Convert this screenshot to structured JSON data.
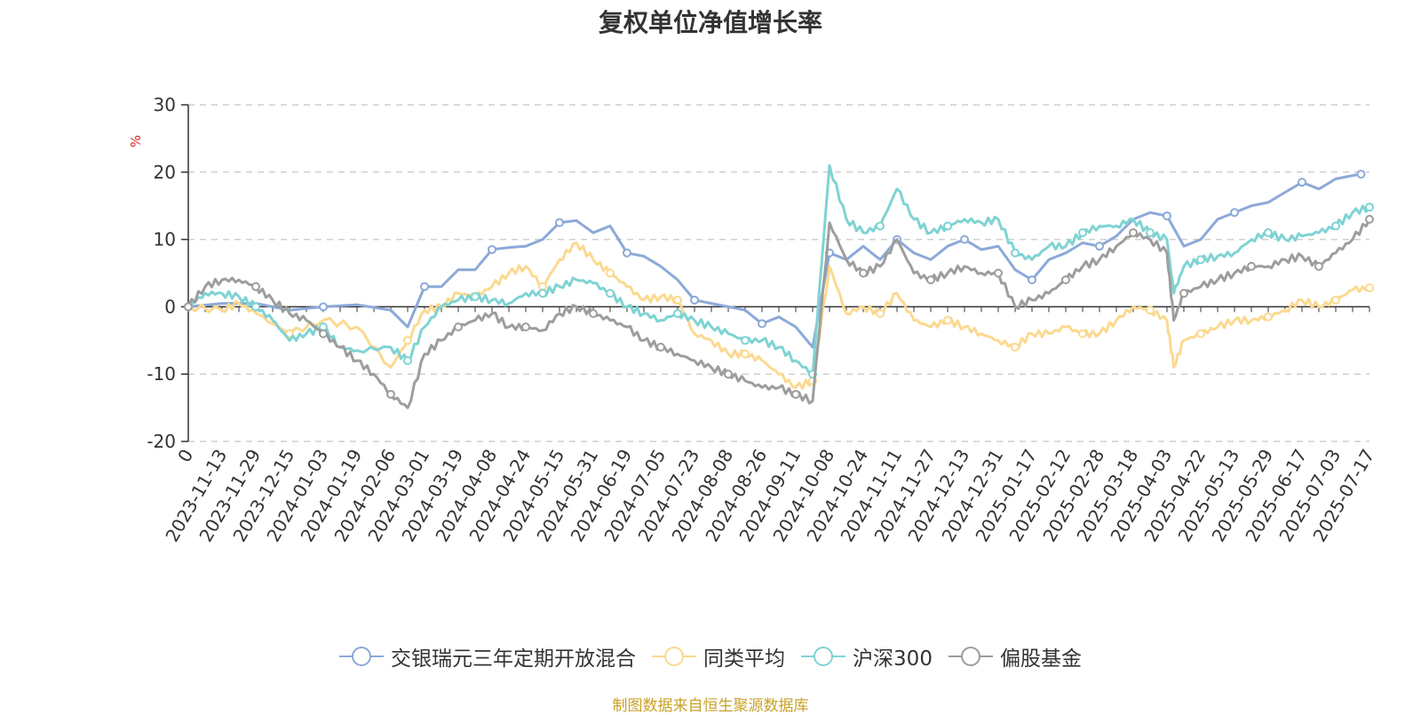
{
  "chart_data": {
    "type": "line",
    "title": "复权单位净值增长率",
    "ylabel": "%",
    "ylim": [
      -20,
      30
    ],
    "yticks": [
      -20,
      -10,
      0,
      10,
      20,
      30
    ],
    "x_ticks": [
      "0",
      "2023-11-13",
      "2023-11-29",
      "2023-12-15",
      "2024-01-03",
      "2024-01-19",
      "2024-02-06",
      "2024-03-01",
      "2024-03-19",
      "2024-04-08",
      "2024-04-24",
      "2024-05-15",
      "2024-05-31",
      "2024-06-19",
      "2024-07-05",
      "2024-07-23",
      "2024-08-08",
      "2024-08-26",
      "2024-09-11",
      "2024-10-08",
      "2024-10-24",
      "2024-11-11",
      "2024-11-27",
      "2024-12-13",
      "2024-12-31",
      "2025-01-17",
      "2025-02-12",
      "2025-02-28",
      "2025-03-18",
      "2025-04-03",
      "2025-04-22",
      "2025-05-13",
      "2025-05-29",
      "2025-06-17",
      "2025-07-03",
      "2025-07-17"
    ],
    "grid": "dashed horizontal",
    "legend_position": "bottom",
    "series": [
      {
        "name": "交银瑞元三年定期开放混合",
        "color": "#8ca9d8",
        "smooth": false,
        "points": [
          [
            0,
            0
          ],
          [
            1,
            0.5
          ],
          [
            2,
            0.5
          ],
          [
            3,
            -0.5
          ],
          [
            4,
            0
          ],
          [
            5,
            0.3
          ],
          [
            6,
            -0.5
          ],
          [
            6.5,
            -3
          ],
          [
            7,
            3
          ],
          [
            7.5,
            3
          ],
          [
            8,
            5.5
          ],
          [
            8.5,
            5.5
          ],
          [
            9,
            8.5
          ],
          [
            9.5,
            8.8
          ],
          [
            10,
            9
          ],
          [
            10.5,
            10
          ],
          [
            11,
            12.5
          ],
          [
            11.5,
            12.8
          ],
          [
            12,
            11
          ],
          [
            12.5,
            12
          ],
          [
            13,
            8
          ],
          [
            13.5,
            7.5
          ],
          [
            14,
            6
          ],
          [
            14.5,
            4
          ],
          [
            15,
            1
          ],
          [
            15.5,
            0.5
          ],
          [
            16,
            0
          ],
          [
            16.5,
            -0.5
          ],
          [
            17,
            -2.5
          ],
          [
            17.5,
            -1.5
          ],
          [
            18,
            -3
          ],
          [
            18.5,
            -6
          ],
          [
            19,
            8
          ],
          [
            19.5,
            7
          ],
          [
            20,
            9
          ],
          [
            20.5,
            7
          ],
          [
            21,
            10
          ],
          [
            21.5,
            8
          ],
          [
            22,
            7
          ],
          [
            22.5,
            9
          ],
          [
            23,
            10
          ],
          [
            23.5,
            8.5
          ],
          [
            24,
            9
          ],
          [
            24.5,
            5.5
          ],
          [
            25,
            4
          ],
          [
            25.5,
            7
          ],
          [
            26,
            8
          ],
          [
            26.5,
            9.5
          ],
          [
            27,
            9
          ],
          [
            27.5,
            10.5
          ],
          [
            28,
            13
          ],
          [
            28.5,
            14
          ],
          [
            29,
            13.5
          ],
          [
            29.5,
            9
          ],
          [
            30,
            10
          ],
          [
            30.5,
            13
          ],
          [
            31,
            14
          ],
          [
            31.5,
            15
          ],
          [
            32,
            15.5
          ],
          [
            32.5,
            17
          ],
          [
            33,
            18.5
          ],
          [
            33.5,
            17.5
          ],
          [
            34,
            19
          ],
          [
            34.5,
            19.5
          ],
          [
            34.75,
            19.7
          ]
        ]
      },
      {
        "name": "同类平均",
        "color": "#fbd98f",
        "smooth": true,
        "points": [
          [
            0,
            0
          ],
          [
            1,
            -0.5
          ],
          [
            1.5,
            0.5
          ],
          [
            2,
            -1
          ],
          [
            3,
            -4
          ],
          [
            4,
            -2
          ],
          [
            5,
            -3
          ],
          [
            6,
            -9
          ],
          [
            6.5,
            -5
          ],
          [
            7,
            -0.5
          ],
          [
            7.5,
            0
          ],
          [
            8,
            2
          ],
          [
            8.5,
            1.5
          ],
          [
            9,
            3
          ],
          [
            9.5,
            5
          ],
          [
            10,
            6
          ],
          [
            10.5,
            3
          ],
          [
            11,
            7
          ],
          [
            11.5,
            9.5
          ],
          [
            12,
            7
          ],
          [
            12.5,
            5
          ],
          [
            13,
            3
          ],
          [
            13.5,
            1
          ],
          [
            14,
            1.5
          ],
          [
            14.5,
            1
          ],
          [
            15,
            -4
          ],
          [
            15.5,
            -5
          ],
          [
            16,
            -7
          ],
          [
            16.5,
            -7
          ],
          [
            17,
            -8
          ],
          [
            17.5,
            -10
          ],
          [
            18,
            -12
          ],
          [
            18.5,
            -11
          ],
          [
            19,
            6
          ],
          [
            19.5,
            -1
          ],
          [
            20,
            0
          ],
          [
            20.5,
            -1
          ],
          [
            21,
            2
          ],
          [
            21.5,
            -2
          ],
          [
            22,
            -3
          ],
          [
            22.5,
            -2
          ],
          [
            23,
            -3
          ],
          [
            23.5,
            -4
          ],
          [
            24,
            -5
          ],
          [
            24.5,
            -6
          ],
          [
            25,
            -4
          ],
          [
            25.5,
            -4
          ],
          [
            26,
            -3
          ],
          [
            26.5,
            -4
          ],
          [
            27,
            -4
          ],
          [
            27.5,
            -2
          ],
          [
            28,
            0
          ],
          [
            28.5,
            -0.5
          ],
          [
            29,
            -2
          ],
          [
            29.2,
            -9
          ],
          [
            29.5,
            -5
          ],
          [
            30,
            -4
          ],
          [
            30.5,
            -3
          ],
          [
            31,
            -2
          ],
          [
            31.5,
            -2
          ],
          [
            32,
            -1.5
          ],
          [
            32.5,
            -0.5
          ],
          [
            33,
            1
          ],
          [
            33.5,
            0
          ],
          [
            34,
            1
          ],
          [
            34.5,
            2.5
          ],
          [
            35,
            2.8
          ]
        ]
      },
      {
        "name": "沪深300",
        "color": "#7fd3d3",
        "smooth": true,
        "points": [
          [
            0,
            0
          ],
          [
            0.5,
            2
          ],
          [
            1,
            2
          ],
          [
            1.5,
            1.5
          ],
          [
            2,
            0
          ],
          [
            2.5,
            -2
          ],
          [
            3,
            -5
          ],
          [
            3.5,
            -4
          ],
          [
            4,
            -3
          ],
          [
            4.5,
            -6
          ],
          [
            5,
            -6.5
          ],
          [
            6,
            -6
          ],
          [
            6.5,
            -8
          ],
          [
            7,
            -3
          ],
          [
            7.5,
            0
          ],
          [
            8,
            1
          ],
          [
            8.5,
            1.5
          ],
          [
            9,
            1
          ],
          [
            9.5,
            0.5
          ],
          [
            10,
            2
          ],
          [
            10.5,
            2
          ],
          [
            11,
            3
          ],
          [
            11.5,
            4
          ],
          [
            12,
            3.5
          ],
          [
            12.5,
            2
          ],
          [
            13,
            0
          ],
          [
            13.5,
            -1
          ],
          [
            14,
            -2
          ],
          [
            14.5,
            -1
          ],
          [
            15,
            -2
          ],
          [
            15.5,
            -3
          ],
          [
            16,
            -4
          ],
          [
            16.5,
            -5
          ],
          [
            17,
            -5
          ],
          [
            17.5,
            -6
          ],
          [
            18,
            -8
          ],
          [
            18.5,
            -10
          ],
          [
            19,
            21
          ],
          [
            19.5,
            13
          ],
          [
            20,
            11
          ],
          [
            20.5,
            12
          ],
          [
            21,
            17.5
          ],
          [
            21.5,
            13
          ],
          [
            22,
            11
          ],
          [
            22.5,
            12
          ],
          [
            23,
            13
          ],
          [
            23.5,
            12.5
          ],
          [
            24,
            13
          ],
          [
            24.5,
            8
          ],
          [
            25,
            7
          ],
          [
            25.5,
            9
          ],
          [
            26,
            9
          ],
          [
            26.5,
            11
          ],
          [
            27,
            12
          ],
          [
            27.5,
            12
          ],
          [
            28,
            13
          ],
          [
            28.5,
            11
          ],
          [
            29,
            10
          ],
          [
            29.2,
            2
          ],
          [
            29.5,
            6
          ],
          [
            30,
            7
          ],
          [
            30.5,
            7.5
          ],
          [
            31,
            8
          ],
          [
            31.5,
            10
          ],
          [
            32,
            11
          ],
          [
            32.5,
            10
          ],
          [
            33,
            10.5
          ],
          [
            33.5,
            11
          ],
          [
            34,
            12
          ],
          [
            34.5,
            14
          ],
          [
            35,
            14.8
          ]
        ]
      },
      {
        "name": "偏股基金",
        "color": "#9d9d9d",
        "smooth": true,
        "points": [
          [
            0,
            0
          ],
          [
            0.5,
            3
          ],
          [
            1,
            4
          ],
          [
            1.5,
            4
          ],
          [
            2,
            3
          ],
          [
            2.5,
            1
          ],
          [
            3,
            -1
          ],
          [
            3.5,
            -2
          ],
          [
            4,
            -4
          ],
          [
            4.5,
            -6
          ],
          [
            5,
            -8
          ],
          [
            5.5,
            -10
          ],
          [
            6,
            -13
          ],
          [
            6.5,
            -15
          ],
          [
            7,
            -7
          ],
          [
            7.5,
            -5
          ],
          [
            8,
            -3
          ],
          [
            8.5,
            -2
          ],
          [
            9,
            -1
          ],
          [
            9.5,
            -3
          ],
          [
            10,
            -3
          ],
          [
            10.5,
            -3.5
          ],
          [
            11,
            -1
          ],
          [
            11.5,
            0
          ],
          [
            12,
            -1
          ],
          [
            12.5,
            -2
          ],
          [
            13,
            -3
          ],
          [
            13.5,
            -5
          ],
          [
            14,
            -6
          ],
          [
            14.5,
            -7
          ],
          [
            15,
            -8
          ],
          [
            15.5,
            -9
          ],
          [
            16,
            -10
          ],
          [
            16.5,
            -11
          ],
          [
            17,
            -12
          ],
          [
            17.5,
            -12
          ],
          [
            18,
            -13
          ],
          [
            18.5,
            -14
          ],
          [
            19,
            12.5
          ],
          [
            19.5,
            7
          ],
          [
            20,
            5
          ],
          [
            20.5,
            6
          ],
          [
            21,
            10
          ],
          [
            21.5,
            5
          ],
          [
            22,
            4
          ],
          [
            22.5,
            5
          ],
          [
            23,
            6
          ],
          [
            23.5,
            5
          ],
          [
            24,
            5
          ],
          [
            24.5,
            0
          ],
          [
            25,
            1
          ],
          [
            25.5,
            2
          ],
          [
            26,
            4
          ],
          [
            26.5,
            6
          ],
          [
            27,
            7
          ],
          [
            27.5,
            9
          ],
          [
            28,
            11
          ],
          [
            28.5,
            10
          ],
          [
            29,
            8
          ],
          [
            29.2,
            -2
          ],
          [
            29.5,
            2
          ],
          [
            30,
            3
          ],
          [
            30.5,
            4
          ],
          [
            31,
            5
          ],
          [
            31.5,
            6
          ],
          [
            32,
            6
          ],
          [
            32.5,
            7
          ],
          [
            33,
            7.5
          ],
          [
            33.5,
            6
          ],
          [
            34,
            8
          ],
          [
            34.5,
            10
          ],
          [
            35,
            13
          ]
        ]
      }
    ]
  },
  "footer": {
    "source": "制图数据来自恒生聚源数据库"
  }
}
